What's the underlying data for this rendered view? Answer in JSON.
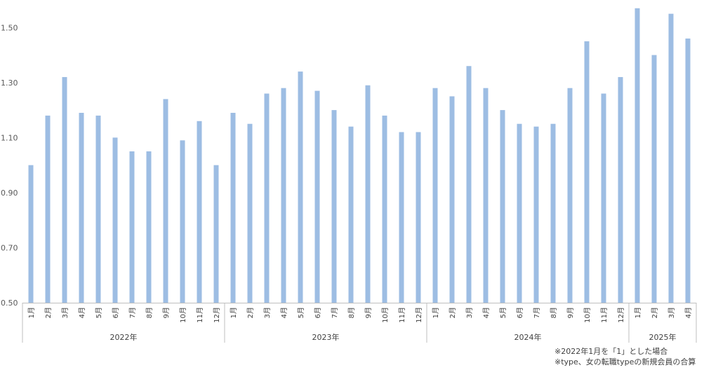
{
  "chart_data": {
    "type": "bar",
    "ylim": [
      0.5,
      1.6
    ],
    "yticks": [
      "0.50",
      "0.70",
      "0.90",
      "1.10",
      "1.30",
      "1.50"
    ],
    "grid": false,
    "legend": "none",
    "bar_color": "#9dbde3",
    "axis_color": "#bfbfbf",
    "groups": [
      {
        "label": "2022年",
        "categories": [
          "1月",
          "2月",
          "3月",
          "4月",
          "5月",
          "6月",
          "7月",
          "8月",
          "9月",
          "10月",
          "11月",
          "12月"
        ]
      },
      {
        "label": "2023年",
        "categories": [
          "1月",
          "2月",
          "3月",
          "4月",
          "5月",
          "6月",
          "7月",
          "8月",
          "9月",
          "10月",
          "11月",
          "12月"
        ]
      },
      {
        "label": "2024年",
        "categories": [
          "1月",
          "2月",
          "3月",
          "4月",
          "5月",
          "6月",
          "7月",
          "8月",
          "9月",
          "10月",
          "11月",
          "12月"
        ]
      },
      {
        "label": "2025年",
        "categories": [
          "1月",
          "2月",
          "3月",
          "4月"
        ]
      }
    ],
    "values": [
      1.0,
      1.18,
      1.32,
      1.19,
      1.18,
      1.1,
      1.05,
      1.05,
      1.24,
      1.09,
      1.16,
      1.0,
      1.19,
      1.15,
      1.26,
      1.28,
      1.34,
      1.27,
      1.2,
      1.14,
      1.29,
      1.18,
      1.12,
      1.12,
      1.28,
      1.25,
      1.36,
      1.28,
      1.2,
      1.15,
      1.14,
      1.15,
      1.28,
      1.45,
      1.26,
      1.32,
      1.57,
      1.4,
      1.55,
      1.46
    ],
    "notes": [
      "※2022年1月を「1」とした場合",
      "※type、女の転職typeの新規会員の合算"
    ]
  }
}
